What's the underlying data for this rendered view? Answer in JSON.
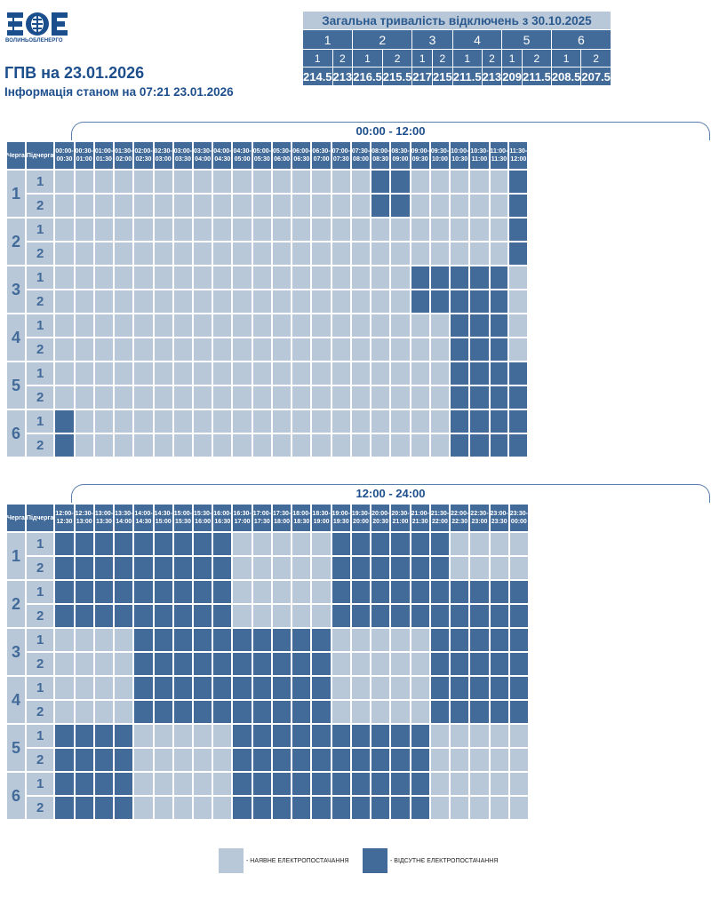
{
  "header": {
    "logo_text": "ВОЛИНЬОБЛЕНЕРГО",
    "title": "ГПВ на 23.01.2026",
    "subtitle": "Інформація станом на 07:21 23.01.2026"
  },
  "summary": {
    "title": "Загальна тривалість відключень з 30.10.2025",
    "queues": [
      "1",
      "2",
      "3",
      "4",
      "5",
      "6"
    ],
    "subqueues": [
      "1",
      "2",
      "1",
      "2",
      "1",
      "2",
      "1",
      "2",
      "1",
      "2",
      "1",
      "2"
    ],
    "values": [
      "214.5",
      "213",
      "216.5",
      "215.5",
      "217",
      "215",
      "211.5",
      "213",
      "209",
      "211.5",
      "208.5",
      "207.5"
    ]
  },
  "schedule": {
    "col_queue": "Черга",
    "col_subqueue": "Підчерга",
    "queue_labels": [
      "1",
      "2",
      "3",
      "4",
      "5",
      "6"
    ],
    "subqueue_labels": [
      "1",
      "2"
    ],
    "first_half": {
      "title": "00:00 - 12:00",
      "slots": [
        "00:00-00:30",
        "00:30-01:00",
        "01:00-01:30",
        "01:30-02:00",
        "02:00-02:30",
        "02:30-03:00",
        "03:00-03:30",
        "03:30-04:00",
        "04:00-04:30",
        "04:30-05:00",
        "05:00-05:30",
        "05:30-06:00",
        "06:00-06:30",
        "06:30-07:00",
        "07:00-07:30",
        "07:30-08:00",
        "08:00-08:30",
        "08:30-09:00",
        "09:00-09:30",
        "09:30-10:00",
        "10:00-10:30",
        "10:30-11:00",
        "11:00-11:30",
        "11:30-12:00"
      ],
      "rows": [
        "000000000000000011000001",
        "000000000000000011000001",
        "000000000000000000000001",
        "000000000000000000000001",
        "000000000000000000111110",
        "000000000000000000111110",
        "000000000000000000001110",
        "000000000000000000001110",
        "000000000000000000001111",
        "000000000000000000001111",
        "100000000000000000001111",
        "100000000000000000001111"
      ]
    },
    "second_half": {
      "title": "12:00 - 24:00",
      "slots": [
        "12:00-12:30",
        "12:30-13:00",
        "13:00-13:30",
        "13:30-14:00",
        "14:00-14:30",
        "14:30-15:00",
        "15:00-15:30",
        "15:30-16:00",
        "16:00-16:30",
        "16:30-17:00",
        "17:00-17:30",
        "17:30-18:00",
        "18:00-18:30",
        "18:30-19:00",
        "19:00-19:30",
        "19:30-20:00",
        "20:00-20:30",
        "20:30-21:00",
        "21:00-21:30",
        "21:30-22:00",
        "22:00-22:30",
        "22:30-23:00",
        "23:00-23:30",
        "23:30-00:00"
      ],
      "rows": [
        "111111111000001111110000",
        "111111111000001111110000",
        "111111111000001111111111",
        "111111111000001111111111",
        "000011111111110000011111",
        "000011111111110000011111",
        "000011111111110000011111",
        "000011111111110000011111",
        "111100000111111111100000",
        "111100000111111111100000",
        "111100000111111111100000",
        "111100000111111111100000"
      ]
    }
  },
  "legend": {
    "available": "- НАЯВНЕ ЕЛЕКТРОПОСТАЧАННЯ",
    "absent": "- ВІДСУТНЄ ЕЛЕКТРОПОСТАЧАННЯ"
  },
  "colors": {
    "available": "#b9c8d8",
    "absent": "#426b9a",
    "text": "#1e4f8d"
  }
}
